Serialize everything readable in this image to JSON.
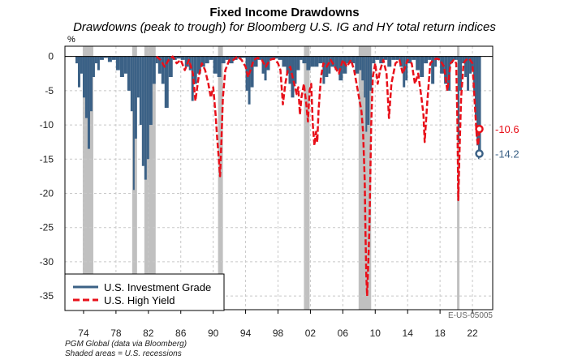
{
  "header": {
    "title": "Fixed Income Drawdowns",
    "subtitle": "Drawdowns (peak to trough) for Bloomberg U.S. IG and HY total return indices"
  },
  "footer": {
    "source": "PGM Global (data via Bloomberg)",
    "note": "Shaded areas = U.S. recessions",
    "chart_code": "E-US-05005"
  },
  "colors": {
    "ig": "#3b6186",
    "hy": "#e8101a",
    "recession": "#c0c0c0",
    "grid": "#c8c8c8"
  },
  "chart_data": {
    "type": "area",
    "title": "Fixed Income Drawdowns",
    "subtitle": "Drawdowns (peak to trough) for Bloomberg U.S. IG and HY total return indices",
    "yunit": "%",
    "ylim": [
      -37,
      1.5
    ],
    "xlim": [
      1971.7,
      2024.5
    ],
    "yticks": [
      0,
      -5,
      -10,
      -15,
      -20,
      -25,
      -30,
      -35
    ],
    "xticks": [
      1974,
      1978,
      1982,
      1986,
      1990,
      1994,
      1998,
      2002,
      2006,
      2010,
      2014,
      2018,
      2022
    ],
    "xticklabels": [
      "74",
      "78",
      "82",
      "86",
      "90",
      "94",
      "98",
      "02",
      "06",
      "10",
      "14",
      "18",
      "22"
    ],
    "grid": true,
    "legend_position": "bottom-left",
    "recessions": [
      [
        1973.9,
        1975.2
      ],
      [
        1980.0,
        1980.6
      ],
      [
        1981.5,
        1982.9
      ],
      [
        1990.6,
        1991.2
      ],
      [
        2001.2,
        2001.9
      ],
      [
        2007.95,
        2009.5
      ],
      [
        2020.1,
        2020.4
      ]
    ],
    "series": [
      {
        "name": "U.S. Investment Grade",
        "style": "solid-area",
        "x": [
          1973.0,
          1973.3,
          1973.6,
          1973.9,
          1974.2,
          1974.5,
          1974.8,
          1975.1,
          1975.4,
          1975.7,
          1976.0,
          1976.5,
          1977.0,
          1977.5,
          1978.0,
          1978.5,
          1979.0,
          1979.4,
          1979.8,
          1980.1,
          1980.3,
          1980.6,
          1980.9,
          1981.2,
          1981.5,
          1981.8,
          1982.1,
          1982.5,
          1982.9,
          1983.2,
          1983.6,
          1984.0,
          1984.5,
          1985.0,
          1985.5,
          1986.0,
          1986.5,
          1987.0,
          1987.3,
          1987.6,
          1988.0,
          1988.5,
          1989.0,
          1989.5,
          1990.0,
          1990.5,
          1991.0,
          1991.5,
          1992.0,
          1992.5,
          1993.0,
          1993.5,
          1994.0,
          1994.3,
          1994.6,
          1995.0,
          1995.5,
          1996.0,
          1996.3,
          1996.6,
          1997.0,
          1997.5,
          1998.0,
          1998.5,
          1999.0,
          1999.3,
          1999.6,
          2000.0,
          2000.3,
          2000.7,
          2001.0,
          2001.5,
          2002.0,
          2002.5,
          2003.0,
          2003.5,
          2003.8,
          2004.2,
          2004.5,
          2005.0,
          2005.5,
          2006.0,
          2006.5,
          2007.0,
          2007.5,
          2008.0,
          2008.3,
          2008.6,
          2008.8,
          2009.0,
          2009.3,
          2009.6,
          2010.0,
          2010.5,
          2011.0,
          2011.5,
          2012.0,
          2012.5,
          2013.0,
          2013.4,
          2013.7,
          2014.0,
          2014.5,
          2015.0,
          2015.5,
          2016.0,
          2016.5,
          2016.9,
          2017.3,
          2017.6,
          2018.0,
          2018.5,
          2018.9,
          2019.3,
          2019.6,
          2020.0,
          2020.2,
          2020.4,
          2020.7,
          2021.0,
          2021.3,
          2021.6,
          2021.9,
          2022.1,
          2022.3,
          2022.5,
          2022.7,
          2022.85
        ],
        "values": [
          -1.0,
          -4.5,
          -2.5,
          -6.0,
          -9.0,
          -13.5,
          -8.0,
          -3.0,
          -1.0,
          -2.0,
          -0.5,
          -0.2,
          -0.8,
          -0.5,
          -2.0,
          -3.0,
          -2.5,
          -5.0,
          -8.0,
          -19.5,
          -12.0,
          -6.0,
          -10.0,
          -16.0,
          -18.0,
          -15.0,
          -10.0,
          -4.0,
          -1.0,
          -2.5,
          -4.0,
          -7.5,
          -3.0,
          -0.5,
          -0.3,
          -0.5,
          -1.5,
          -2.0,
          -6.5,
          -4.0,
          -2.5,
          -1.5,
          -1.0,
          -0.5,
          -2.5,
          -3.0,
          -1.0,
          -0.5,
          -1.0,
          -0.5,
          -0.3,
          -0.2,
          -5.0,
          -7.0,
          -4.5,
          -1.5,
          -0.5,
          -2.5,
          -3.5,
          -2.0,
          -0.5,
          -0.3,
          -0.5,
          -1.5,
          -2.5,
          -4.0,
          -6.0,
          -4.0,
          -2.0,
          -0.5,
          -1.0,
          -2.0,
          -1.5,
          -1.5,
          -1.0,
          -4.0,
          -3.0,
          -2.5,
          -1.5,
          -2.0,
          -3.5,
          -2.5,
          -1.0,
          -1.0,
          -2.5,
          -2.0,
          -3.5,
          -6.0,
          -11.0,
          -10.0,
          -5.0,
          -1.0,
          -0.5,
          -1.0,
          -0.5,
          -1.5,
          -0.5,
          -0.5,
          -1.5,
          -4.5,
          -3.5,
          -1.0,
          -0.5,
          -2.0,
          -3.0,
          -1.0,
          -0.5,
          -4.0,
          -1.5,
          -0.5,
          -2.5,
          -4.0,
          -5.0,
          -1.0,
          -0.5,
          -0.5,
          -12.5,
          -5.0,
          -1.0,
          -3.0,
          -5.0,
          -2.5,
          -2.0,
          -5.0,
          -9.0,
          -13.0,
          -15.0,
          -14.2
        ]
      },
      {
        "name": "U.S. High Yield",
        "style": "dashed-line",
        "x": [
          1983.0,
          1983.5,
          1984.0,
          1984.5,
          1985.0,
          1985.5,
          1986.0,
          1986.5,
          1987.0,
          1987.5,
          1987.8,
          1988.2,
          1988.6,
          1989.0,
          1989.4,
          1989.7,
          1990.0,
          1990.3,
          1990.5,
          1990.7,
          1990.85,
          1991.0,
          1991.2,
          1991.5,
          1992.0,
          1992.5,
          1993.0,
          1993.5,
          1994.0,
          1994.3,
          1994.6,
          1995.0,
          1995.5,
          1996.0,
          1996.5,
          1997.0,
          1997.5,
          1998.0,
          1998.3,
          1998.6,
          1998.9,
          1999.2,
          1999.5,
          1999.8,
          2000.0,
          2000.3,
          2000.5,
          2000.7,
          2000.9,
          2001.2,
          2001.5,
          2001.7,
          2001.9,
          2002.1,
          2002.3,
          2002.5,
          2002.7,
          2002.85,
          2003.0,
          2003.3,
          2003.6,
          2004.0,
          2004.5,
          2005.0,
          2005.5,
          2006.0,
          2006.5,
          2007.0,
          2007.4,
          2007.7,
          2008.0,
          2008.3,
          2008.5,
          2008.7,
          2008.8,
          2008.9,
          2009.0,
          2009.15,
          2009.3,
          2009.5,
          2009.7,
          2010.0,
          2010.3,
          2010.6,
          2011.0,
          2011.4,
          2011.7,
          2012.0,
          2012.5,
          2013.0,
          2013.4,
          2013.7,
          2014.0,
          2014.5,
          2014.9,
          2015.3,
          2015.7,
          2015.95,
          2016.1,
          2016.4,
          2016.8,
          2017.2,
          2017.6,
          2018.0,
          2018.5,
          2018.9,
          2019.3,
          2019.7,
          2020.0,
          2020.15,
          2020.25,
          2020.4,
          2020.6,
          2020.9,
          2021.2,
          2021.6,
          2022.0,
          2022.2,
          2022.4,
          2022.55,
          2022.7,
          2022.85
        ],
        "values": [
          0.0,
          -0.5,
          -1.5,
          -0.5,
          0.0,
          -1.0,
          -0.5,
          -2.0,
          -0.5,
          -2.5,
          -6.5,
          -3.0,
          -1.0,
          -2.0,
          -4.0,
          -6.0,
          -4.5,
          -8.5,
          -12.0,
          -15.0,
          -17.5,
          -13.0,
          -6.0,
          -2.0,
          -0.5,
          -0.5,
          0.0,
          -0.5,
          -1.5,
          -3.0,
          -2.0,
          -0.5,
          -0.2,
          -0.5,
          -1.5,
          -0.5,
          -0.3,
          -1.0,
          -2.0,
          -7.0,
          -4.0,
          -2.0,
          -1.5,
          -3.0,
          -4.0,
          -5.5,
          -4.5,
          -8.5,
          -6.0,
          -4.0,
          -7.0,
          -9.5,
          -5.0,
          -4.0,
          -10.0,
          -13.0,
          -11.0,
          -12.5,
          -8.0,
          -3.0,
          -1.0,
          -1.5,
          -0.5,
          -1.5,
          -2.5,
          -0.5,
          -1.5,
          -0.5,
          -2.0,
          -4.0,
          -6.0,
          -8.0,
          -11.0,
          -18.0,
          -26.0,
          -32.0,
          -35.0,
          -30.0,
          -24.0,
          -10.0,
          -3.0,
          -1.0,
          -4.0,
          -2.0,
          -0.5,
          -2.5,
          -9.0,
          -4.0,
          -1.0,
          -0.5,
          -2.5,
          -1.5,
          -0.5,
          -1.0,
          -4.0,
          -2.5,
          -6.0,
          -8.5,
          -12.5,
          -7.0,
          -1.0,
          -0.5,
          -0.3,
          -0.5,
          -1.5,
          -5.0,
          -1.0,
          -0.5,
          -1.0,
          -10.0,
          -21.0,
          -14.0,
          -6.0,
          -1.0,
          -0.5,
          -0.3,
          -1.0,
          -5.0,
          -9.0,
          -12.0,
          -13.0,
          -10.6
        ]
      }
    ],
    "end_labels": [
      {
        "series": "U.S. High Yield",
        "text": "-10.6",
        "value": -10.6
      },
      {
        "series": "U.S. Investment Grade",
        "text": "-14.2",
        "value": -14.2
      }
    ],
    "legend": [
      "U.S. Investment Grade",
      "U.S. High Yield"
    ]
  }
}
